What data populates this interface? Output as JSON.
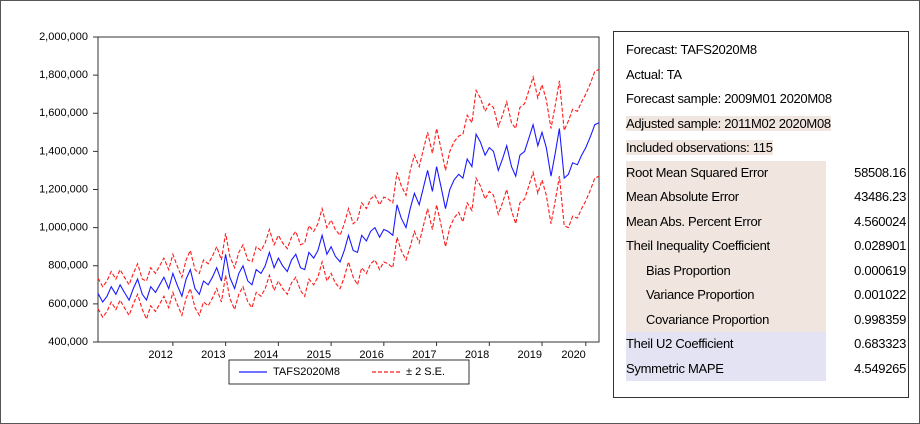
{
  "chart_data": {
    "type": "line",
    "x": [
      2011.08,
      2011.17,
      2011.25,
      2011.33,
      2011.42,
      2011.5,
      2011.58,
      2011.67,
      2011.75,
      2011.83,
      2011.92,
      2012.0,
      2012.08,
      2012.17,
      2012.25,
      2012.33,
      2012.42,
      2012.5,
      2012.58,
      2012.67,
      2012.75,
      2012.83,
      2012.92,
      2013.0,
      2013.08,
      2013.17,
      2013.25,
      2013.33,
      2013.42,
      2013.5,
      2013.58,
      2013.67,
      2013.75,
      2013.83,
      2013.92,
      2014.0,
      2014.08,
      2014.17,
      2014.25,
      2014.33,
      2014.42,
      2014.5,
      2014.58,
      2014.67,
      2014.75,
      2014.83,
      2014.92,
      2015.0,
      2015.08,
      2015.17,
      2015.25,
      2015.33,
      2015.42,
      2015.5,
      2015.58,
      2015.67,
      2015.75,
      2015.83,
      2015.92,
      2016.0,
      2016.08,
      2016.17,
      2016.25,
      2016.33,
      2016.42,
      2016.5,
      2016.58,
      2016.67,
      2016.75,
      2016.83,
      2016.92,
      2017.0,
      2017.08,
      2017.17,
      2017.25,
      2017.33,
      2017.42,
      2017.5,
      2017.58,
      2017.67,
      2017.75,
      2017.83,
      2017.92,
      2018.0,
      2018.08,
      2018.17,
      2018.25,
      2018.33,
      2018.42,
      2018.5,
      2018.58,
      2018.67,
      2018.75,
      2018.83,
      2018.92,
      2019.0,
      2019.08,
      2019.17,
      2019.25,
      2019.33,
      2019.42,
      2019.5,
      2019.58,
      2019.67,
      2019.75,
      2019.83,
      2019.92,
      2020.0,
      2020.08,
      2020.17,
      2020.25,
      2020.33,
      2020.42,
      2020.5,
      2020.58
    ],
    "series": [
      {
        "name": "TAFS2020M8",
        "color": "#1a1aff",
        "values": [
          655000,
          610000,
          640000,
          690000,
          650000,
          700000,
          660000,
          620000,
          680000,
          730000,
          650000,
          620000,
          690000,
          660000,
          700000,
          740000,
          680000,
          760000,
          700000,
          640000,
          730000,
          780000,
          680000,
          650000,
          720000,
          700000,
          740000,
          790000,
          720000,
          860000,
          740000,
          680000,
          760000,
          800000,
          720000,
          700000,
          780000,
          760000,
          800000,
          870000,
          790000,
          840000,
          800000,
          770000,
          830000,
          860000,
          790000,
          780000,
          870000,
          840000,
          880000,
          960000,
          860000,
          900000,
          850000,
          820000,
          880000,
          960000,
          880000,
          870000,
          960000,
          930000,
          980000,
          1000000,
          950000,
          990000,
          980000,
          960000,
          1120000,
          1050000,
          1000000,
          1100000,
          1180000,
          1120000,
          1210000,
          1300000,
          1190000,
          1320000,
          1220000,
          1100000,
          1200000,
          1250000,
          1280000,
          1260000,
          1360000,
          1320000,
          1490000,
          1450000,
          1380000,
          1420000,
          1400000,
          1300000,
          1360000,
          1430000,
          1320000,
          1270000,
          1380000,
          1400000,
          1470000,
          1540000,
          1430000,
          1500000,
          1420000,
          1270000,
          1390000,
          1520000,
          1260000,
          1280000,
          1340000,
          1330000,
          1380000,
          1420000,
          1480000,
          1540000,
          1550000
        ]
      },
      {
        "name": "± 2 S.E.",
        "color": "#ff1a1a",
        "upper": [
          735000,
          690000,
          720000,
          770000,
          730000,
          780000,
          740000,
          700000,
          760000,
          810000,
          730000,
          720000,
          790000,
          760000,
          800000,
          840000,
          780000,
          860000,
          800000,
          740000,
          830000,
          880000,
          780000,
          760000,
          830000,
          810000,
          850000,
          900000,
          830000,
          970000,
          850000,
          790000,
          870000,
          910000,
          830000,
          820000,
          900000,
          880000,
          920000,
          990000,
          910000,
          960000,
          920000,
          890000,
          950000,
          980000,
          910000,
          920000,
          1010000,
          980000,
          1020000,
          1100000,
          1000000,
          1040000,
          990000,
          960000,
          1020000,
          1100000,
          1020000,
          1040000,
          1130000,
          1100000,
          1150000,
          1170000,
          1120000,
          1160000,
          1150000,
          1130000,
          1290000,
          1220000,
          1170000,
          1300000,
          1380000,
          1320000,
          1410000,
          1500000,
          1390000,
          1520000,
          1420000,
          1300000,
          1400000,
          1450000,
          1480000,
          1490000,
          1590000,
          1550000,
          1720000,
          1680000,
          1610000,
          1650000,
          1630000,
          1530000,
          1590000,
          1660000,
          1550000,
          1520000,
          1630000,
          1650000,
          1720000,
          1790000,
          1680000,
          1750000,
          1670000,
          1520000,
          1640000,
          1770000,
          1510000,
          1560000,
          1620000,
          1610000,
          1660000,
          1700000,
          1760000,
          1820000,
          1830000
        ],
        "lower": [
          575000,
          530000,
          560000,
          610000,
          570000,
          620000,
          580000,
          540000,
          600000,
          650000,
          570000,
          520000,
          590000,
          560000,
          600000,
          640000,
          580000,
          660000,
          600000,
          540000,
          630000,
          680000,
          580000,
          540000,
          610000,
          590000,
          630000,
          680000,
          610000,
          750000,
          630000,
          570000,
          650000,
          690000,
          610000,
          580000,
          660000,
          640000,
          680000,
          750000,
          670000,
          720000,
          680000,
          650000,
          710000,
          740000,
          670000,
          640000,
          730000,
          700000,
          740000,
          820000,
          720000,
          760000,
          710000,
          680000,
          740000,
          820000,
          740000,
          700000,
          790000,
          760000,
          810000,
          830000,
          780000,
          820000,
          810000,
          790000,
          950000,
          880000,
          830000,
          900000,
          980000,
          920000,
          1010000,
          1100000,
          990000,
          1120000,
          1020000,
          900000,
          1000000,
          1050000,
          1080000,
          1030000,
          1130000,
          1090000,
          1260000,
          1220000,
          1150000,
          1190000,
          1170000,
          1070000,
          1130000,
          1200000,
          1090000,
          1020000,
          1130000,
          1150000,
          1220000,
          1290000,
          1180000,
          1250000,
          1170000,
          1020000,
          1140000,
          1270000,
          1010000,
          1000000,
          1060000,
          1050000,
          1100000,
          1140000,
          1200000,
          1260000,
          1270000
        ]
      }
    ],
    "xlim": [
      2011.08,
      2020.58
    ],
    "xticks": [
      {
        "value": 2012.5,
        "label": "2012"
      },
      {
        "value": 2013.5,
        "label": "2013"
      },
      {
        "value": 2014.5,
        "label": "2014"
      },
      {
        "value": 2015.5,
        "label": "2015"
      },
      {
        "value": 2016.5,
        "label": "2016"
      },
      {
        "value": 2017.5,
        "label": "2017"
      },
      {
        "value": 2018.5,
        "label": "2018"
      },
      {
        "value": 2019.5,
        "label": "2019"
      },
      {
        "value": 2020.33,
        "label": "2020"
      }
    ],
    "ylim": [
      400000,
      2000000
    ],
    "yticks": [
      {
        "value": 400000,
        "label": "400,000"
      },
      {
        "value": 600000,
        "label": "600,000"
      },
      {
        "value": 800000,
        "label": "800,000"
      },
      {
        "value": 1000000,
        "label": "1,000,000"
      },
      {
        "value": 1200000,
        "label": "1,200,000"
      },
      {
        "value": 1400000,
        "label": "1,400,000"
      },
      {
        "value": 1600000,
        "label": "1,600,000"
      },
      {
        "value": 1800000,
        "label": "1,800,000"
      },
      {
        "value": 2000000,
        "label": "2,000,000"
      }
    ]
  },
  "stats": {
    "lines": [
      "Forecast: TAFS2020M8",
      "Actual: TA",
      "Forecast sample: 2009M01 2020M08",
      "Adjusted sample: 2011M02 2020M08",
      "Included observations: 115"
    ],
    "rows": [
      [
        "Root Mean Squared Error",
        "58508.16"
      ],
      [
        "Mean Absolute Error",
        "43486.23"
      ],
      [
        "Mean Abs. Percent Error",
        "4.560024"
      ],
      [
        "Theil Inequality Coefficient",
        "0.028901"
      ],
      [
        "Bias Proportion",
        "0.000619"
      ],
      [
        "Variance Proportion",
        "0.001022"
      ],
      [
        "Covariance Proportion",
        "0.998359"
      ],
      [
        "Theil U2 Coefficient",
        "0.683323"
      ],
      [
        "Symmetric MAPE",
        "4.549265"
      ]
    ]
  }
}
